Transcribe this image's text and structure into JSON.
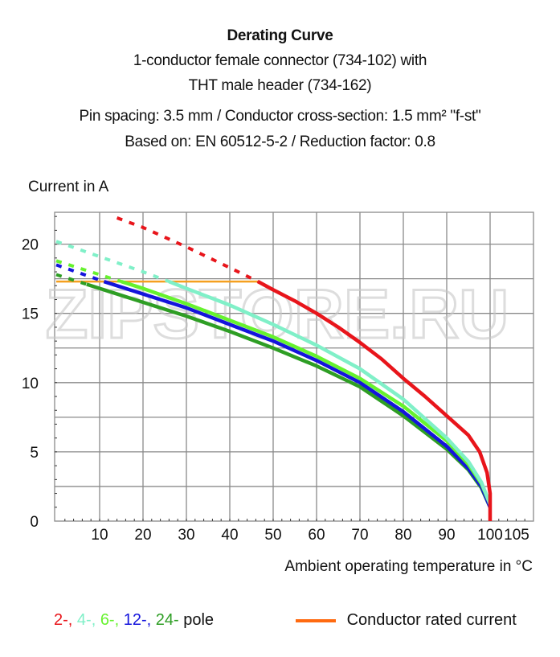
{
  "header": {
    "title": "Derating Curve",
    "lines": [
      "1-conductor female connector (734-102) with",
      "THT male header (734-162)",
      "Pin spacing: 3.5 mm / Conductor cross-section: 1.5 mm² \"f-st\"",
      "Based on: EN 60512-5-2 / Reduction factor: 0.8"
    ]
  },
  "watermark": "ZIPSTORE.RU",
  "chart_data": {
    "type": "line",
    "ylabel": "Current in A",
    "xlabel": "Ambient operating temperature in °C",
    "xlim": [
      0,
      110
    ],
    "ylim": [
      0,
      22.3
    ],
    "x_ticks": [
      "10",
      "20",
      "30",
      "40",
      "50",
      "60",
      "70",
      "80",
      "90",
      "100",
      "105"
    ],
    "x_tick_values": [
      10,
      20,
      30,
      40,
      50,
      60,
      70,
      80,
      90,
      100,
      105
    ],
    "y_ticks": [
      "0",
      "5",
      "10",
      "15",
      "20"
    ],
    "y_tick_values": [
      0,
      5,
      10,
      15,
      20
    ],
    "grid": true,
    "rated_current": {
      "name": "Conductor rated current",
      "color": "#f5a020",
      "points": [
        [
          0,
          17.3
        ],
        [
          46.5,
          17.3
        ]
      ]
    },
    "series": [
      {
        "name": "2-",
        "color": "#e8151b",
        "dashed": [
          [
            14,
            21.9
          ],
          [
            20,
            21.2
          ],
          [
            30,
            19.8
          ],
          [
            40,
            18.3
          ],
          [
            46.5,
            17.3
          ]
        ],
        "solid": [
          [
            46.5,
            17.3
          ],
          [
            50,
            16.7
          ],
          [
            55,
            15.9
          ],
          [
            60,
            15.0
          ],
          [
            65,
            14.0
          ],
          [
            70,
            12.9
          ],
          [
            75,
            11.7
          ],
          [
            80,
            10.3
          ],
          [
            85,
            9.0
          ],
          [
            90,
            7.6
          ],
          [
            95,
            6.2
          ],
          [
            97.6,
            5.0
          ],
          [
            99.3,
            3.5
          ],
          [
            100,
            2.0
          ],
          [
            100,
            0
          ]
        ]
      },
      {
        "name": "4-",
        "color": "#80f0c8",
        "dashed": [
          [
            0,
            20.2
          ],
          [
            10,
            19.1
          ],
          [
            20,
            18.0
          ],
          [
            26,
            17.3
          ]
        ],
        "solid": [
          [
            26,
            17.3
          ],
          [
            30,
            16.8
          ],
          [
            40,
            15.6
          ],
          [
            50,
            14.2
          ],
          [
            60,
            12.7
          ],
          [
            70,
            11.0
          ],
          [
            80,
            8.8
          ],
          [
            90,
            6.0
          ],
          [
            95,
            4.3
          ],
          [
            98,
            2.8
          ],
          [
            100,
            1.2
          ]
        ]
      },
      {
        "name": "6-",
        "color": "#66f22e",
        "dashed": [
          [
            0,
            18.8
          ],
          [
            10,
            17.8
          ],
          [
            15,
            17.3
          ]
        ],
        "solid": [
          [
            15,
            17.3
          ],
          [
            20,
            16.8
          ],
          [
            30,
            15.7
          ],
          [
            40,
            14.5
          ],
          [
            50,
            13.3
          ],
          [
            60,
            11.9
          ],
          [
            70,
            10.3
          ],
          [
            80,
            8.3
          ],
          [
            90,
            5.8
          ],
          [
            95,
            4.1
          ],
          [
            98,
            2.7
          ],
          [
            100,
            1.2
          ]
        ]
      },
      {
        "name": "12-",
        "color": "#1414dc",
        "dashed": [
          [
            0,
            18.5
          ],
          [
            11,
            17.3
          ]
        ],
        "solid": [
          [
            11,
            17.3
          ],
          [
            20,
            16.4
          ],
          [
            30,
            15.4
          ],
          [
            40,
            14.2
          ],
          [
            50,
            13.0
          ],
          [
            60,
            11.6
          ],
          [
            70,
            10.0
          ],
          [
            80,
            7.9
          ],
          [
            90,
            5.4
          ],
          [
            95,
            3.8
          ],
          [
            98,
            2.5
          ],
          [
            100,
            1.0
          ]
        ]
      },
      {
        "name": "24-",
        "color": "#2e9e24",
        "dashed": [
          [
            0,
            17.8
          ],
          [
            7,
            17.1
          ]
        ],
        "solid": [
          [
            7,
            17.1
          ],
          [
            20,
            15.8
          ],
          [
            30,
            14.8
          ],
          [
            40,
            13.7
          ],
          [
            50,
            12.5
          ],
          [
            60,
            11.2
          ],
          [
            70,
            9.7
          ],
          [
            80,
            7.6
          ],
          [
            90,
            5.2
          ],
          [
            95,
            3.7
          ],
          [
            98,
            2.4
          ],
          [
            100,
            1.0
          ]
        ]
      }
    ],
    "legend": {
      "pole_suffix": "pole",
      "rated_label": "Conductor rated current",
      "rated_color": "#ff6a10",
      "placement": "bottom"
    }
  }
}
